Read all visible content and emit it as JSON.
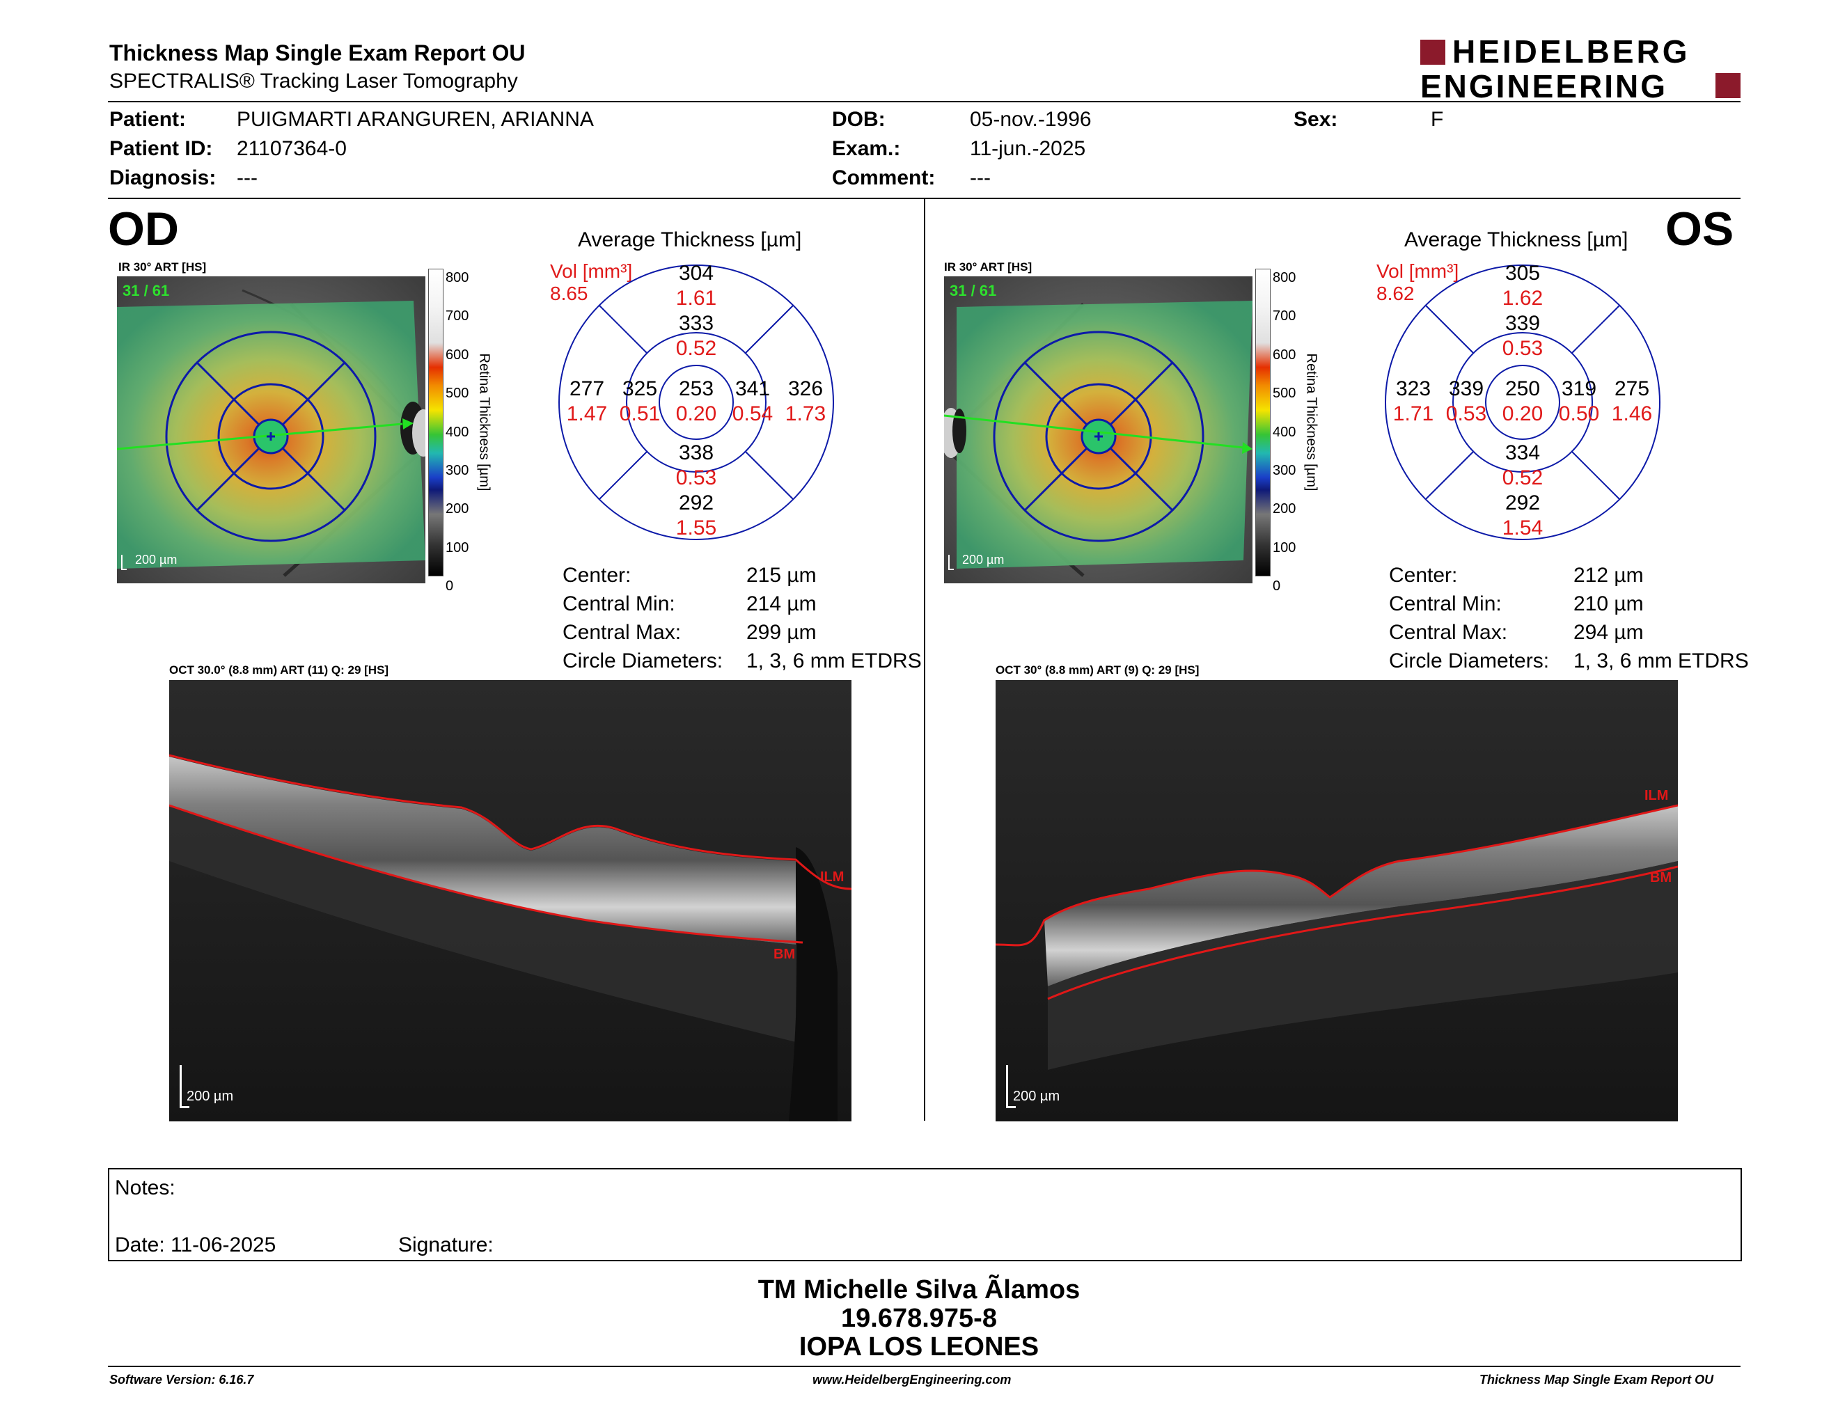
{
  "header": {
    "title": "Thickness Map Single Exam Report OU",
    "subtitle": "SPECTRALIS® Tracking Laser Tomography",
    "logo_line1": "HEIDELBERG",
    "logo_line2": "ENGINEERING",
    "colors": {
      "logo_red": "#8b1a2b"
    }
  },
  "patient": {
    "patient_label": "Patient:",
    "patient_value": "PUIGMARTI ARANGUREN, ARIANNA",
    "id_label": "Patient ID:",
    "id_value": "21107364-0",
    "diagnosis_label": "Diagnosis:",
    "diagnosis_value": "---",
    "dob_label": "DOB:",
    "dob_value": "05-nov.-1996",
    "exam_label": "Exam.:",
    "exam_value": "11-jun.-2025",
    "comment_label": "Comment:",
    "comment_value": "---",
    "sex_label": "Sex:",
    "sex_value": "F"
  },
  "od": {
    "eye": "OD",
    "ir_label": "IR 30° ART [HS]",
    "frame": "31 / 61",
    "scale": "200 µm",
    "colorbar_ticks": [
      "800",
      "700",
      "600",
      "500",
      "400",
      "300",
      "200",
      "100",
      "0"
    ],
    "colorbar_title": "Retina  Thickness [µm]",
    "avg_title": "Average Thickness [µm]",
    "vol_label": "Vol [mm³]",
    "vol_total": "8.65",
    "sectors": {
      "center": {
        "t": "253",
        "v": "0.20"
      },
      "inner_sup": {
        "t": "333",
        "v": "0.52"
      },
      "inner_inf": {
        "t": "338",
        "v": "0.53"
      },
      "inner_left": {
        "t": "325",
        "v": "0.51"
      },
      "inner_right": {
        "t": "341",
        "v": "0.54"
      },
      "outer_sup": {
        "t": "304",
        "v": "1.61"
      },
      "outer_inf": {
        "t": "292",
        "v": "1.55"
      },
      "outer_left": {
        "t": "277",
        "v": "1.47"
      },
      "outer_right": {
        "t": "326",
        "v": "1.73"
      }
    },
    "stats": {
      "center_label": "Center:",
      "center_value": "215 µm",
      "min_label": "Central Min:",
      "min_value": "214 µm",
      "max_label": "Central Max:",
      "max_value": "299 µm",
      "diam_label": "Circle Diameters:",
      "diam_value": "1, 3, 6 mm ETDRS"
    },
    "oct_label": "OCT 30.0° (8.8 mm) ART (11) Q: 29 [HS]",
    "oct_scale": "200 µm",
    "ilm": "ILM",
    "bm": "BM"
  },
  "os": {
    "eye": "OS",
    "ir_label": "IR 30° ART [HS]",
    "frame": "31 / 61",
    "scale": "200 µm",
    "colorbar_ticks": [
      "800",
      "700",
      "600",
      "500",
      "400",
      "300",
      "200",
      "100",
      "0"
    ],
    "colorbar_title": "Retina  Thickness [µm]",
    "avg_title": "Average Thickness [µm]",
    "vol_label": "Vol [mm³]",
    "vol_total": "8.62",
    "sectors": {
      "center": {
        "t": "250",
        "v": "0.20"
      },
      "inner_sup": {
        "t": "339",
        "v": "0.53"
      },
      "inner_inf": {
        "t": "334",
        "v": "0.52"
      },
      "inner_left": {
        "t": "339",
        "v": "0.53"
      },
      "inner_right": {
        "t": "319",
        "v": "0.50"
      },
      "outer_sup": {
        "t": "305",
        "v": "1.62"
      },
      "outer_inf": {
        "t": "292",
        "v": "1.54"
      },
      "outer_left": {
        "t": "323",
        "v": "1.71"
      },
      "outer_right": {
        "t": "275",
        "v": "1.46"
      }
    },
    "stats": {
      "center_label": "Center:",
      "center_value": "212 µm",
      "min_label": "Central Min:",
      "min_value": "210 µm",
      "max_label": "Central Max:",
      "max_value": "294 µm",
      "diam_label": "Circle Diameters:",
      "diam_value": "1, 3, 6 mm ETDRS"
    },
    "oct_label": "OCT 30° (8.8 mm) ART (9) Q: 29 [HS]",
    "oct_scale": "200 µm",
    "ilm": "ILM",
    "bm": "BM"
  },
  "notes": {
    "notes_label": "Notes:",
    "date_label": "Date: 11-06-2025",
    "signature_label": "Signature:"
  },
  "signer": {
    "name": "TM Michelle Silva Ãlamos",
    "rut": "19.678.975-8",
    "clinic": "IOPA LOS LEONES"
  },
  "footer": {
    "software": "Software Version: 6.16.7",
    "website": "www.HeidelbergEngineering.com",
    "report": "Thickness Map Single Exam Report OU"
  }
}
